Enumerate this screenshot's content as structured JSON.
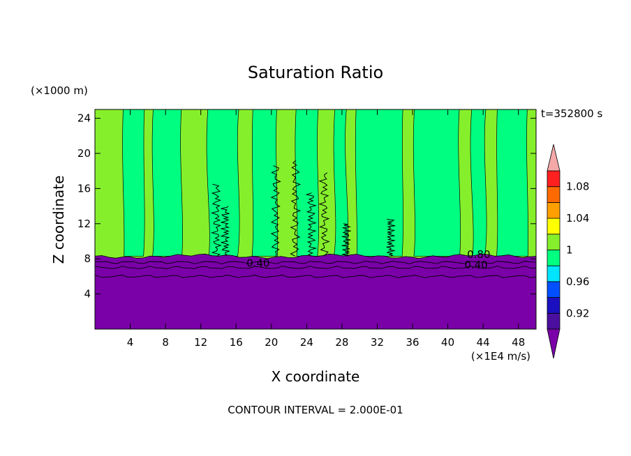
{
  "chart_data": {
    "type": "heatmap",
    "title": "Saturation Ratio",
    "xlabel": "X coordinate",
    "ylabel": "Z coordinate",
    "x_unit": "(×1E4 m/s)",
    "y_unit": "(×1000 m)",
    "time_label": "t=352800 s",
    "footer": "CONTOUR INTERVAL = 2.000E-01",
    "xlim": [
      0,
      50
    ],
    "ylim": [
      0,
      25
    ],
    "x_ticks": [
      4,
      8,
      12,
      16,
      20,
      24,
      28,
      32,
      36,
      40,
      44,
      48
    ],
    "y_ticks": [
      4,
      8,
      12,
      16,
      20,
      24
    ],
    "contour_labels": [
      {
        "text": "0.40",
        "x": 18.5,
        "y": 7.1
      },
      {
        "text": "0.80",
        "x": 43.5,
        "y": 8.1
      },
      {
        "text": "0.40",
        "x": 43.2,
        "y": 6.9
      }
    ],
    "colorbar": {
      "levels": [
        0.9,
        0.92,
        0.94,
        0.96,
        0.98,
        1.0,
        1.02,
        1.04,
        1.06,
        1.08,
        1.1
      ],
      "colors": [
        "#4b0fa0",
        "#1a10c0",
        "#0050ff",
        "#00e5ff",
        "#00ff80",
        "#86ef2c",
        "#ffff00",
        "#ffa000",
        "#ff6a00",
        "#ff2020"
      ],
      "under_color": "#7a00a8",
      "over_color": "#f4a8a8",
      "tick_labels": [
        {
          "label": "1.08",
          "level": 1.08
        },
        {
          "label": "1.04",
          "level": 1.04
        },
        {
          "label": "1",
          "level": 1.0
        },
        {
          "label": "0.96",
          "level": 0.96
        },
        {
          "label": "0.92",
          "level": 0.92
        }
      ]
    },
    "regions": {
      "stable_layer_color": "#7a00a8",
      "stable_layer_top_z": 8.3,
      "background_color": "#86ef2c",
      "saturated_color": "#00ff80",
      "saturated_columns": [
        [
          3.2,
          5.6
        ],
        [
          6.6,
          9.8
        ],
        [
          12.8,
          16.3
        ],
        [
          17.9,
          20.6
        ],
        [
          22.8,
          25.3
        ],
        [
          27.2,
          28.5
        ],
        [
          29.6,
          34.9
        ],
        [
          36.2,
          41.3
        ],
        [
          42.7,
          44.3
        ],
        [
          45.6,
          49.0
        ]
      ]
    }
  }
}
